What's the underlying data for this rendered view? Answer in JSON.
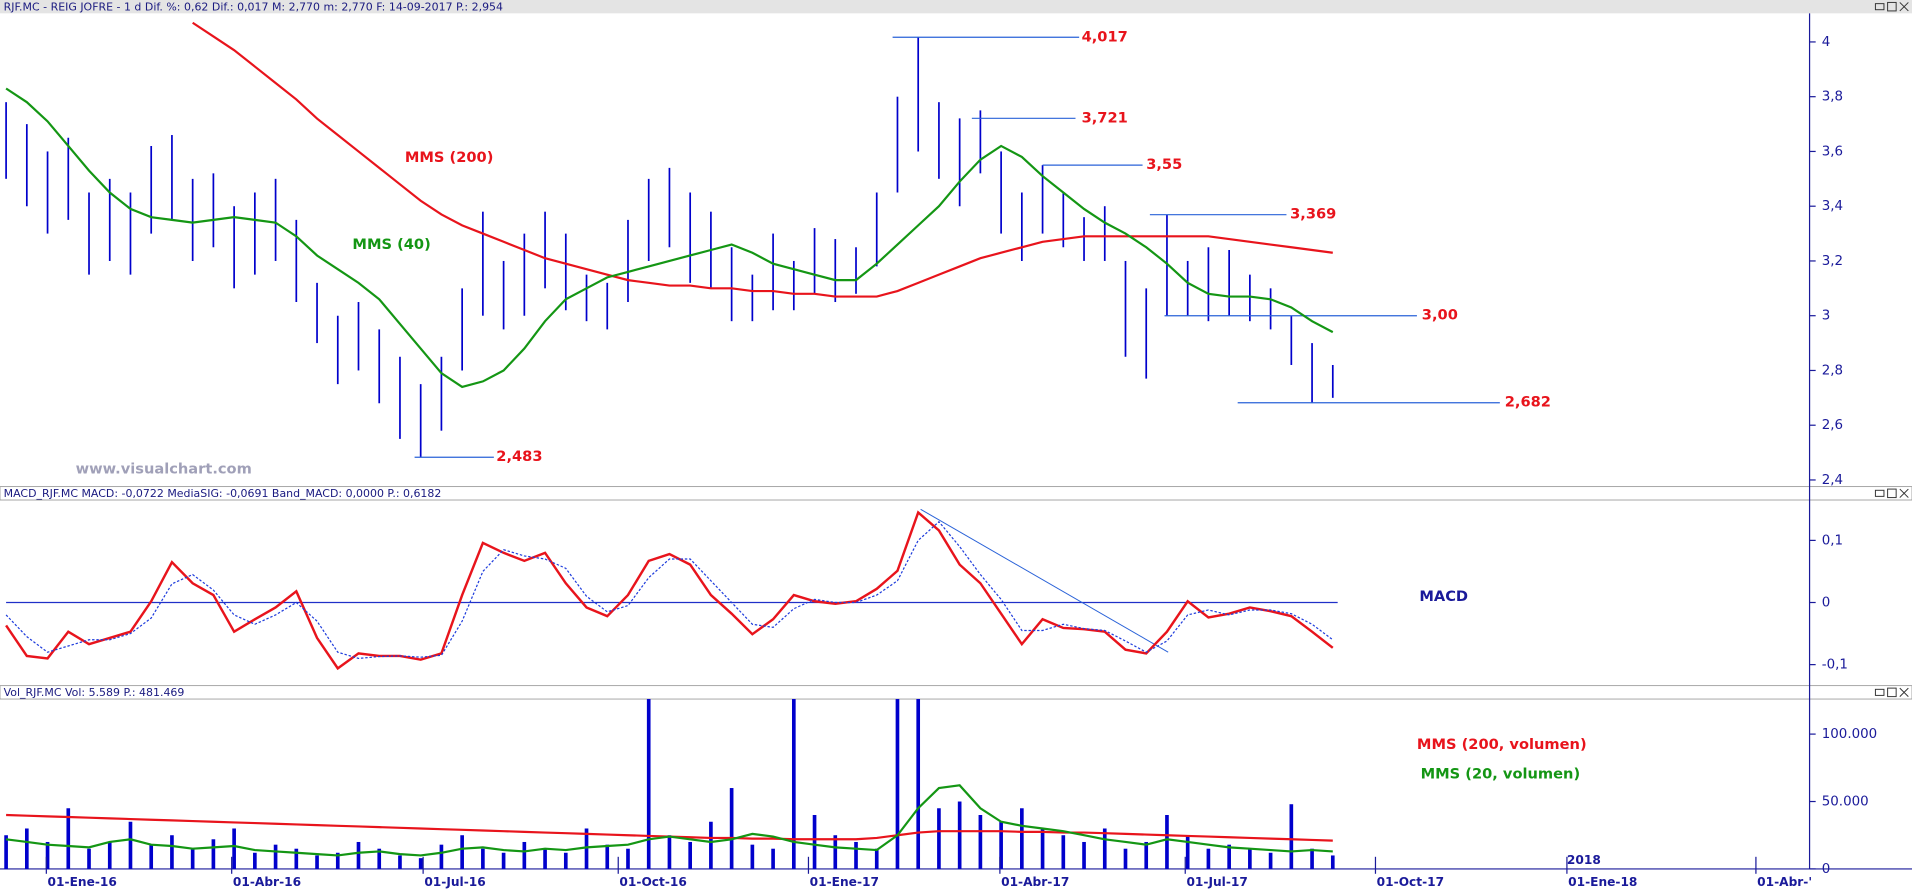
{
  "watermark": "www.visualchart.com",
  "chart_data": [
    {
      "type": "range",
      "title": "RJF.MC - REIG JOFRE -  1 d  Dif. %: 0,62  Dif.: 0,017  M: 2,770  m: 2,770  F: 14-09-2017  P.: 2,954",
      "color": "#0000cc",
      "high": [
        3.78,
        3.7,
        3.6,
        3.65,
        3.45,
        3.5,
        3.45,
        3.62,
        3.66,
        3.5,
        3.52,
        3.4,
        3.45,
        3.5,
        3.35,
        3.12,
        3.0,
        3.05,
        2.95,
        2.85,
        2.75,
        2.85,
        3.1,
        3.38,
        3.2,
        3.3,
        3.38,
        3.3,
        3.15,
        3.12,
        3.35,
        3.5,
        3.54,
        3.45,
        3.38,
        3.25,
        3.15,
        3.3,
        3.2,
        3.32,
        3.28,
        3.25,
        3.45,
        3.8,
        4.017,
        3.78,
        3.721,
        3.75,
        3.6,
        3.45,
        3.55,
        3.45,
        3.36,
        3.4,
        3.2,
        3.1,
        3.369,
        3.2,
        3.25,
        3.24,
        3.15,
        3.1,
        3.0,
        2.9,
        2.82
      ],
      "low": [
        3.5,
        3.4,
        3.3,
        3.35,
        3.15,
        3.2,
        3.15,
        3.3,
        3.35,
        3.2,
        3.25,
        3.1,
        3.15,
        3.2,
        3.05,
        2.9,
        2.75,
        2.8,
        2.68,
        2.55,
        2.483,
        2.58,
        2.8,
        3.0,
        2.95,
        3.0,
        3.1,
        3.02,
        2.98,
        2.95,
        3.05,
        3.2,
        3.25,
        3.12,
        3.1,
        2.98,
        2.98,
        3.02,
        3.02,
        3.08,
        3.05,
        3.08,
        3.18,
        3.45,
        3.6,
        3.5,
        3.4,
        3.52,
        3.3,
        3.2,
        3.3,
        3.25,
        3.2,
        3.2,
        2.85,
        2.77,
        3.0,
        3.0,
        2.98,
        3.0,
        2.98,
        2.95,
        2.82,
        2.682,
        2.7
      ],
      "series": [
        {
          "name": "MMS (200)",
          "color": "#e8141c",
          "values": [
            null,
            null,
            null,
            null,
            null,
            null,
            null,
            null,
            null,
            4.07,
            4.02,
            3.97,
            3.91,
            3.85,
            3.79,
            3.72,
            3.66,
            3.6,
            3.54,
            3.48,
            3.42,
            3.37,
            3.33,
            3.3,
            3.27,
            3.24,
            3.21,
            3.19,
            3.17,
            3.15,
            3.13,
            3.12,
            3.11,
            3.11,
            3.1,
            3.1,
            3.09,
            3.09,
            3.08,
            3.08,
            3.07,
            3.07,
            3.07,
            3.09,
            3.12,
            3.15,
            3.18,
            3.21,
            3.23,
            3.25,
            3.27,
            3.28,
            3.29,
            3.29,
            3.29,
            3.29,
            3.29,
            3.29,
            3.29,
            3.28,
            3.27,
            3.26,
            3.25,
            3.24,
            3.23
          ]
        },
        {
          "name": "MMS (40)",
          "color": "#149614",
          "values": [
            3.83,
            3.78,
            3.71,
            3.62,
            3.53,
            3.45,
            3.39,
            3.36,
            3.35,
            3.34,
            3.35,
            3.36,
            3.35,
            3.34,
            3.29,
            3.22,
            3.17,
            3.12,
            3.06,
            2.97,
            2.88,
            2.79,
            2.74,
            2.76,
            2.8,
            2.88,
            2.98,
            3.06,
            3.1,
            3.14,
            3.16,
            3.18,
            3.2,
            3.22,
            3.24,
            3.26,
            3.23,
            3.19,
            3.17,
            3.15,
            3.13,
            3.13,
            3.19,
            3.26,
            3.33,
            3.4,
            3.49,
            3.57,
            3.62,
            3.58,
            3.51,
            3.45,
            3.39,
            3.34,
            3.3,
            3.25,
            3.19,
            3.12,
            3.08,
            3.07,
            3.07,
            3.06,
            3.03,
            2.98,
            2.94
          ]
        }
      ],
      "annotations": [
        {
          "value": 4.017,
          "label": "4,017"
        },
        {
          "value": 3.721,
          "label": "3,721"
        },
        {
          "value": 3.55,
          "label": "3,55"
        },
        {
          "value": 3.369,
          "label": "3,369"
        },
        {
          "value": 3.0,
          "label": "3,00"
        },
        {
          "value": 2.682,
          "label": "2,682"
        },
        {
          "value": 2.483,
          "label": "2,483"
        }
      ],
      "ylim": [
        2.38,
        4.1
      ],
      "yticks": [
        {
          "value": 2.4,
          "label": "2,4"
        },
        {
          "value": 2.6,
          "label": "2,6"
        },
        {
          "value": 2.8,
          "label": "2,8"
        },
        3,
        {
          "value": 3.2,
          "label": "3,2"
        },
        {
          "value": 3.4,
          "label": "3,4"
        },
        {
          "value": 3.6,
          "label": "3,6"
        },
        {
          "value": 3.8,
          "label": "3,8"
        },
        4
      ]
    },
    {
      "type": "line",
      "title": "MACD_RJF.MC  MACD: -0,0722  MediaSIG: -0,0691  Band_MACD: 0,0000  P.: 0,6182",
      "label": "MACD",
      "series": [
        {
          "color": "#e8141c",
          "values": [
            -0.037,
            -0.086,
            -0.09,
            -0.047,
            -0.067,
            -0.057,
            -0.047,
            0.002,
            0.065,
            0.031,
            0.012,
            -0.047,
            -0.027,
            -0.008,
            0.018,
            -0.057,
            -0.106,
            -0.082,
            -0.086,
            -0.086,
            -0.092,
            -0.082,
            0.012,
            0.096,
            0.08,
            0.067,
            0.08,
            0.031,
            -0.008,
            -0.022,
            0.012,
            0.067,
            0.078,
            0.061,
            0.012,
            -0.018,
            -0.051,
            -0.027,
            0.012,
            0.002,
            -0.002,
            0.002,
            0.022,
            0.051,
            0.145,
            0.116,
            0.061,
            0.031,
            -0.018,
            -0.067,
            -0.027,
            -0.041,
            -0.043,
            -0.047,
            -0.076,
            -0.082,
            -0.047,
            0.002,
            -0.024,
            -0.018,
            -0.008,
            -0.014,
            -0.022,
            -0.047,
            -0.073
          ]
        },
        {
          "color": "#1e3cdc",
          "values": [
            -0.02,
            -0.055,
            -0.08,
            -0.07,
            -0.06,
            -0.06,
            -0.05,
            -0.025,
            0.03,
            0.045,
            0.02,
            -0.02,
            -0.035,
            -0.02,
            0,
            -0.03,
            -0.08,
            -0.09,
            -0.087,
            -0.086,
            -0.088,
            -0.085,
            -0.03,
            0.05,
            0.085,
            0.075,
            0.07,
            0.055,
            0.01,
            -0.015,
            -0.005,
            0.04,
            0.07,
            0.07,
            0.035,
            0,
            -0.035,
            -0.04,
            -0.01,
            0.005,
            0,
            0,
            0.012,
            0.035,
            0.1,
            0.13,
            0.09,
            0.045,
            0.005,
            -0.045,
            -0.045,
            -0.035,
            -0.042,
            -0.045,
            -0.062,
            -0.08,
            -0.062,
            -0.02,
            -0.012,
            -0.02,
            -0.012,
            -0.012,
            -0.018,
            -0.035,
            -0.06
          ]
        }
      ],
      "trendline": [
        0.15,
        -0.08
      ],
      "ylim": [
        -0.13,
        0.165
      ],
      "yticks": [
        {
          "value": -0.1,
          "label": "-0,1"
        },
        0,
        {
          "value": 0.1,
          "label": "0,1"
        }
      ]
    },
    {
      "type": "bar",
      "title": "Vol_RJF.MC  Vol: 5.589  P.: 481.469",
      "color": "#0000cc",
      "values": [
        25000,
        30000,
        20000,
        45000,
        15000,
        20000,
        35000,
        18000,
        25000,
        15000,
        22000,
        30000,
        12000,
        18000,
        15000,
        10000,
        12000,
        20000,
        15000,
        10000,
        8000,
        18000,
        25000,
        15000,
        12000,
        20000,
        15000,
        12000,
        30000,
        18000,
        15000,
        126000,
        25000,
        20000,
        35000,
        60000,
        18000,
        15000,
        126000,
        40000,
        25000,
        20000,
        15000,
        126000,
        126000,
        45000,
        50000,
        40000,
        35000,
        45000,
        30000,
        25000,
        20000,
        30000,
        15000,
        20000,
        40000,
        25000,
        15000,
        18000,
        15000,
        12000,
        48000,
        15000,
        10000
      ],
      "series": [
        {
          "name": "MMS (200, volumen)",
          "color": "#e8141c",
          "values": [
            40000,
            39500,
            39000,
            38500,
            38000,
            37500,
            37000,
            36500,
            36000,
            35500,
            35000,
            34500,
            34000,
            33500,
            33000,
            32500,
            32000,
            31500,
            31000,
            30500,
            30000,
            29500,
            29000,
            28500,
            28000,
            27500,
            27000,
            26500,
            26000,
            25500,
            25000,
            24500,
            24000,
            23500,
            23000,
            23000,
            22500,
            22500,
            22000,
            22000,
            22000,
            22000,
            23000,
            25000,
            27000,
            28000,
            28000,
            28000,
            28000,
            27500,
            27500,
            27000,
            27000,
            26500,
            26000,
            25500,
            25000,
            24500,
            24000,
            23500,
            23000,
            22500,
            22000,
            21500,
            21000
          ]
        },
        {
          "name": "MMS (20, volumen)",
          "color": "#149614",
          "values": [
            22000,
            20000,
            18000,
            17000,
            16000,
            20000,
            22000,
            18000,
            17000,
            15000,
            16000,
            17000,
            14000,
            13000,
            12000,
            11000,
            10000,
            12000,
            13000,
            11000,
            10000,
            12000,
            15000,
            16000,
            14000,
            13000,
            15000,
            14000,
            16000,
            17000,
            18000,
            22000,
            24000,
            22000,
            20000,
            22000,
            26000,
            24000,
            20000,
            18000,
            16000,
            15000,
            14000,
            25000,
            45000,
            60000,
            62000,
            45000,
            35000,
            32000,
            30000,
            28000,
            25000,
            22000,
            20000,
            18000,
            22000,
            20000,
            18000,
            16000,
            15000,
            14000,
            13000,
            14000,
            13000
          ]
        }
      ],
      "x_labels": [
        "01-Ene-16",
        "01-Abr-16",
        "01-Jul-16",
        "01-Oct-16",
        "01-Ene-17",
        "01-Abr-17",
        "01-Jul-17",
        "01-Oct-17",
        "01-Ene-18",
        "01-Abr-'"
      ],
      "year_label": "2018",
      "ylim": [
        0,
        126000
      ],
      "yticks": [
        0,
        {
          "value": 50000,
          "label": "50.000"
        },
        {
          "value": 100000,
          "label": "100.000"
        }
      ]
    }
  ]
}
